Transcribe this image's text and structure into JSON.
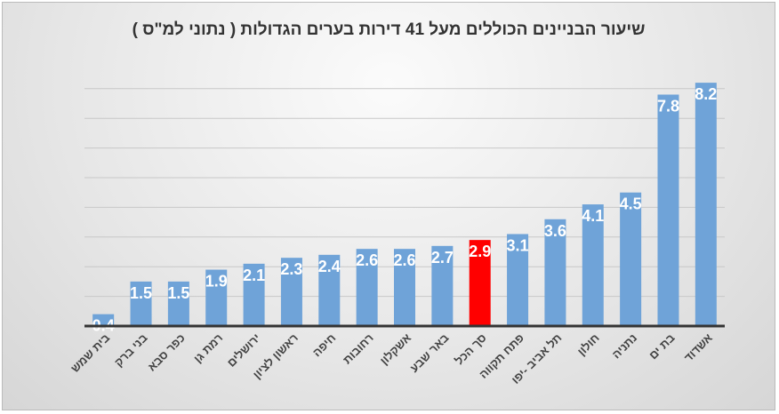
{
  "chart_data": {
    "type": "bar",
    "title": "שיעור הבניינים הכוללים מעל 41 דירות בערים הגדולות ( נתוני למ\"ס )",
    "categories": [
      "בית שמש",
      "בני ברק",
      "כפר סבא",
      "רמת גן",
      "ירושלים",
      "ראשון לציון",
      "חיפה",
      "רחובות",
      "אשקלון",
      "באר שבע",
      "סך הכל",
      "פתח תקווה",
      "תל אביב -יפו",
      "חולון",
      "נתניה",
      "בת ים",
      "אשדוד"
    ],
    "values": [
      0.4,
      1.5,
      1.5,
      1.9,
      2.1,
      2.3,
      2.4,
      2.6,
      2.6,
      2.7,
      2.9,
      3.1,
      3.6,
      4.1,
      4.5,
      7.8,
      8.2
    ],
    "highlight": "סך הכל",
    "colors": {
      "bar": "#6fa3d8",
      "highlight": "#ff0000",
      "label": "#ffffff",
      "axis": "#333333",
      "grid": "#c8c8c8"
    },
    "xlabel": "",
    "ylabel": "",
    "ylim": [
      0,
      8
    ],
    "grid": true,
    "legend": "none"
  }
}
